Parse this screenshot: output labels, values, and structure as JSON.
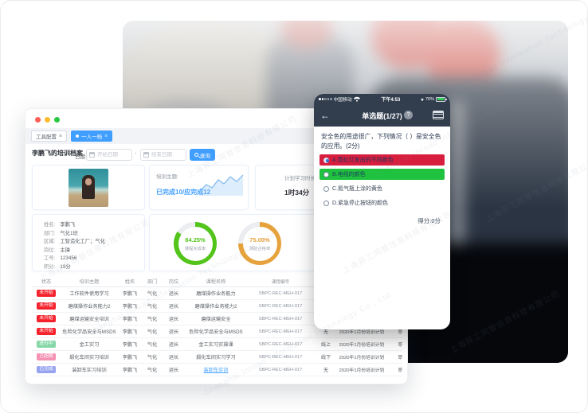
{
  "watermark": {
    "cn": "上海异工同智信息科技有限公司",
    "en": "Shanghai Inroad Information Technology Co., Ltd."
  },
  "desktop": {
    "tabs": [
      {
        "label": "工具配置",
        "active": false
      },
      {
        "label": "一人一档",
        "active": true
      }
    ],
    "tab_close": "×",
    "header": {
      "title": "李鹏飞的培训档案",
      "date_label": "日期",
      "start_placeholder": "开始日期",
      "end_placeholder": "结束日期",
      "separator": "-",
      "search_button": "查询"
    },
    "summary": {
      "topic_label": "培训主题:",
      "topic_value": "已完成10/应完成12",
      "duration_label": "计划学习时长",
      "duration_value": "1时34分"
    },
    "profile": {
      "fields": [
        {
          "label": "姓名:",
          "value": "李鹏飞"
        },
        {
          "label": "部门:",
          "value": "气化1班"
        },
        {
          "label": "区域:",
          "value": "工智造化工厂；气化"
        },
        {
          "label": "岗位:",
          "value": "主操"
        },
        {
          "label": "工号:",
          "value": "123456"
        },
        {
          "label": "积分:",
          "value": "19分"
        }
      ]
    },
    "donuts": [
      {
        "value": "84.25%",
        "percent": 84.25,
        "label": "课程完成率",
        "color": "#52c41a"
      },
      {
        "value": "75.00%",
        "percent": 75.0,
        "label": "测验合格率",
        "color": "#e6a23c"
      }
    ],
    "table": {
      "headers": [
        "状态",
        "培训主题",
        "姓名",
        "部门",
        "岗位",
        "课程名称",
        "课程编号",
        "",
        "",
        ""
      ],
      "rows": [
        {
          "badge": "未开始",
          "badge_color": "#f5222d",
          "theme": "工作软件使用学习",
          "name": "李鹏飞",
          "dept": "气化",
          "post": "运长",
          "course": "磨煤操作业务能力",
          "course_is_link": false,
          "number": "SBPC-REC-MEH-017",
          "mode": "",
          "plan": "",
          "extra": ""
        },
        {
          "badge": "未开始",
          "badge_color": "#f5222d",
          "theme": "磨煤操作业务能力2",
          "name": "李鹏飞",
          "dept": "气化",
          "post": "运长",
          "course": "磨煤操作业务能力2",
          "course_is_link": false,
          "number": "SBPC-REC-MEH-017",
          "mode": "",
          "plan": "",
          "extra": ""
        },
        {
          "badge": "未开始",
          "badge_color": "#f5222d",
          "theme": "磨煤运输安全培训",
          "name": "李鹏飞",
          "dept": "气化",
          "post": "运长",
          "course": "磨煤运输安全",
          "course_is_link": false,
          "number": "SBPC-REC-MEH-017",
          "mode": "",
          "plan": "",
          "extra": ""
        },
        {
          "badge": "未开始",
          "badge_color": "#f5222d",
          "theme": "危险化学品安全与MSDS",
          "name": "李鹏飞",
          "dept": "气化",
          "post": "运长",
          "course": "危险化学品安全与MSDS",
          "course_is_link": false,
          "number": "SBPC-REC-MEH-017",
          "mode": "无",
          "plan": "2020年1月份培训计划",
          "extra": "职能"
        },
        {
          "badge": "进行中",
          "badge_color": "#86d7a8",
          "theme": "金工实习",
          "name": "李鹏飞",
          "dept": "气化",
          "post": "运长",
          "course": "金工实习实操课",
          "course_is_link": false,
          "number": "SBPC-REC-MEH-017",
          "mode": "线上",
          "plan": "2020年1月份培训计划",
          "extra": "职能"
        },
        {
          "badge": "已超期",
          "badge_color": "#f591b2",
          "theme": "煅化车间实习培训",
          "name": "李鹏飞",
          "dept": "气化",
          "post": "运长",
          "course": "煅化车间实习学习",
          "course_is_link": false,
          "number": "SBPC-REC-MEH-017",
          "mode": "线下",
          "plan": "2020年1月份培训计划",
          "extra": "职能"
        },
        {
          "badge": "已完成",
          "badge_color": "#98a3f0",
          "theme": "装卸车实习培训",
          "name": "李鹏飞",
          "dept": "气化",
          "post": "运长",
          "course": "装卸车实训",
          "course_is_link": true,
          "number": "SBPC-REC-MEH-017",
          "mode": "无",
          "plan": "2020年1月份培训计划",
          "extra": "职能"
        }
      ]
    }
  },
  "phone": {
    "status_bar": {
      "carrier": "中国移动",
      "time": "下午4:53",
      "battery": "76%"
    },
    "nav": {
      "title": "单选题(1/27)",
      "help": "?"
    },
    "question": "安全色的用途很广，下列情况（ ）是安全色的应用。(2分)",
    "options": [
      {
        "text": "A.霓虹灯发出的不同颜色",
        "bg": "#d81e3f",
        "selected": true,
        "color": "#23355c"
      },
      {
        "text": "B.电线的颜色",
        "bg": "#1fc23e",
        "selected": false,
        "color": "#1d3b5e"
      },
      {
        "text": "C.氮气瓶上涂的黄色",
        "bg": "",
        "selected": false,
        "color": "#3c4858"
      },
      {
        "text": "D.紧急停止按钮的颜色",
        "bg": "",
        "selected": false,
        "color": "#3c4858"
      }
    ],
    "score": "得分:0分"
  }
}
